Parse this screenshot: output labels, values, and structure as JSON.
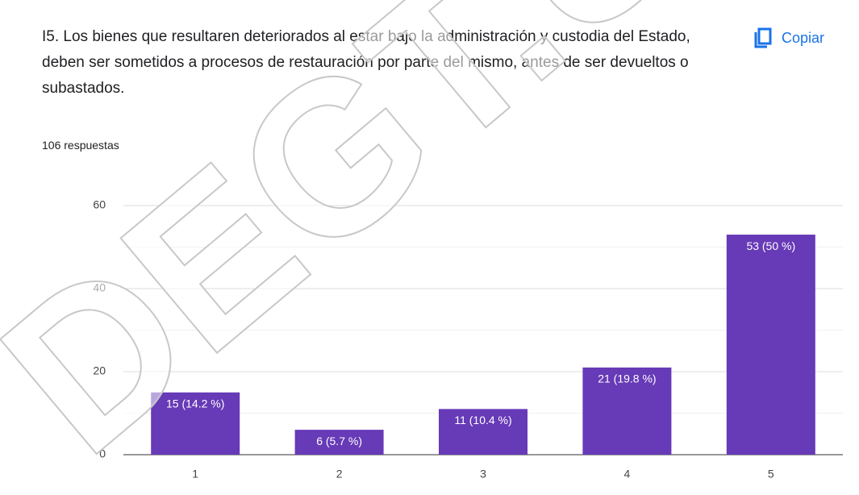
{
  "title": "I5. Los bienes que resultaren deteriorados al estar bajo la administración y custodia del Estado, deben ser sometidos a procesos de restauración por parte del mismo, antes de ser devueltos o subastados.",
  "copy_button": "Copiar",
  "responses": "106 respuestas",
  "watermark": "DEGT.U",
  "chart_data": {
    "type": "bar",
    "categories": [
      "1",
      "2",
      "3",
      "4",
      "5"
    ],
    "values": [
      15,
      6,
      11,
      21,
      53
    ],
    "value_labels": [
      "15 (14.2 %)",
      "6 (5.7 %)",
      "11 (10.4 %)",
      "21 (19.8 %)",
      "53 (50 %)"
    ],
    "color": "#673ab7",
    "ylim": [
      0,
      60
    ],
    "yticks": [
      0,
      20,
      40,
      60
    ],
    "minor_yticks": [
      10,
      30,
      50
    ],
    "grid": true
  }
}
